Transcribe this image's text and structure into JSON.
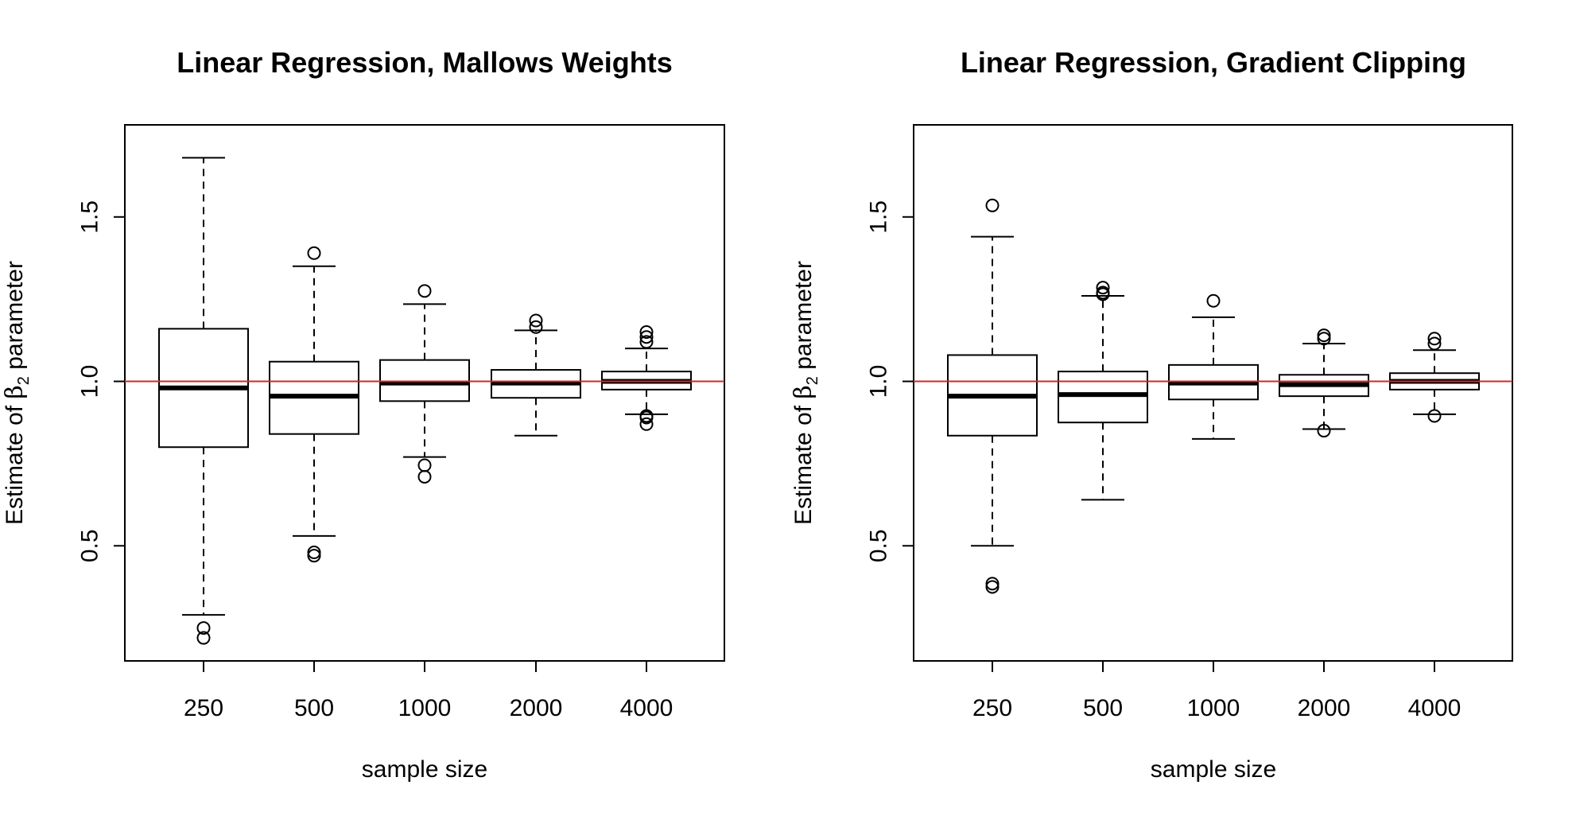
{
  "chart_data": [
    {
      "type": "boxplot",
      "title": "Linear Regression, Mallows Weights",
      "xlabel": "sample size",
      "ylabel_prefix": "Estimate of ",
      "ylabel_symbol": "β",
      "ylabel_subscript": "2",
      "ylabel_suffix": " parameter",
      "ylim": [
        0.15,
        1.78
      ],
      "yticks": [
        0.5,
        1.0,
        1.5
      ],
      "ytick_labels": [
        "0.5",
        "1.0",
        "1.5"
      ],
      "reference_line": 1.0,
      "reference_color": "#d62728",
      "categories": [
        "250",
        "500",
        "1000",
        "2000",
        "4000"
      ],
      "boxes": [
        {
          "whisker_low": 0.29,
          "q1": 0.8,
          "median": 0.98,
          "q3": 1.16,
          "whisker_high": 1.68,
          "outliers": [
            0.25,
            0.22
          ]
        },
        {
          "whisker_low": 0.53,
          "q1": 0.84,
          "median": 0.955,
          "q3": 1.06,
          "whisker_high": 1.35,
          "outliers": [
            1.39,
            0.48,
            0.47
          ]
        },
        {
          "whisker_low": 0.77,
          "q1": 0.94,
          "median": 0.995,
          "q3": 1.065,
          "whisker_high": 1.235,
          "outliers": [
            1.275,
            0.745,
            0.71
          ]
        },
        {
          "whisker_low": 0.835,
          "q1": 0.95,
          "median": 0.995,
          "q3": 1.035,
          "whisker_high": 1.155,
          "outliers": [
            1.185,
            1.165
          ]
        },
        {
          "whisker_low": 0.9,
          "q1": 0.975,
          "median": 1.0,
          "q3": 1.03,
          "whisker_high": 1.1,
          "outliers": [
            1.15,
            1.135,
            1.12,
            0.895,
            0.89,
            0.87
          ]
        }
      ]
    },
    {
      "type": "boxplot",
      "title": "Linear Regression, Gradient Clipping",
      "xlabel": "sample size",
      "ylabel_prefix": "Estimate of ",
      "ylabel_symbol": "β",
      "ylabel_subscript": "2",
      "ylabel_suffix": " parameter",
      "ylim": [
        0.15,
        1.78
      ],
      "yticks": [
        0.5,
        1.0,
        1.5
      ],
      "ytick_labels": [
        "0.5",
        "1.0",
        "1.5"
      ],
      "reference_line": 1.0,
      "reference_color": "#d62728",
      "categories": [
        "250",
        "500",
        "1000",
        "2000",
        "4000"
      ],
      "boxes": [
        {
          "whisker_low": 0.5,
          "q1": 0.835,
          "median": 0.955,
          "q3": 1.08,
          "whisker_high": 1.44,
          "outliers": [
            1.535,
            0.385,
            0.375
          ]
        },
        {
          "whisker_low": 0.64,
          "q1": 0.875,
          "median": 0.96,
          "q3": 1.03,
          "whisker_high": 1.26,
          "outliers": [
            1.285,
            1.27,
            1.265
          ]
        },
        {
          "whisker_low": 0.825,
          "q1": 0.945,
          "median": 0.995,
          "q3": 1.05,
          "whisker_high": 1.195,
          "outliers": [
            1.245
          ]
        },
        {
          "whisker_low": 0.855,
          "q1": 0.955,
          "median": 0.99,
          "q3": 1.02,
          "whisker_high": 1.115,
          "outliers": [
            1.14,
            1.13,
            0.85
          ]
        },
        {
          "whisker_low": 0.9,
          "q1": 0.975,
          "median": 1.0,
          "q3": 1.025,
          "whisker_high": 1.095,
          "outliers": [
            1.13,
            1.115,
            0.895
          ]
        }
      ]
    }
  ]
}
